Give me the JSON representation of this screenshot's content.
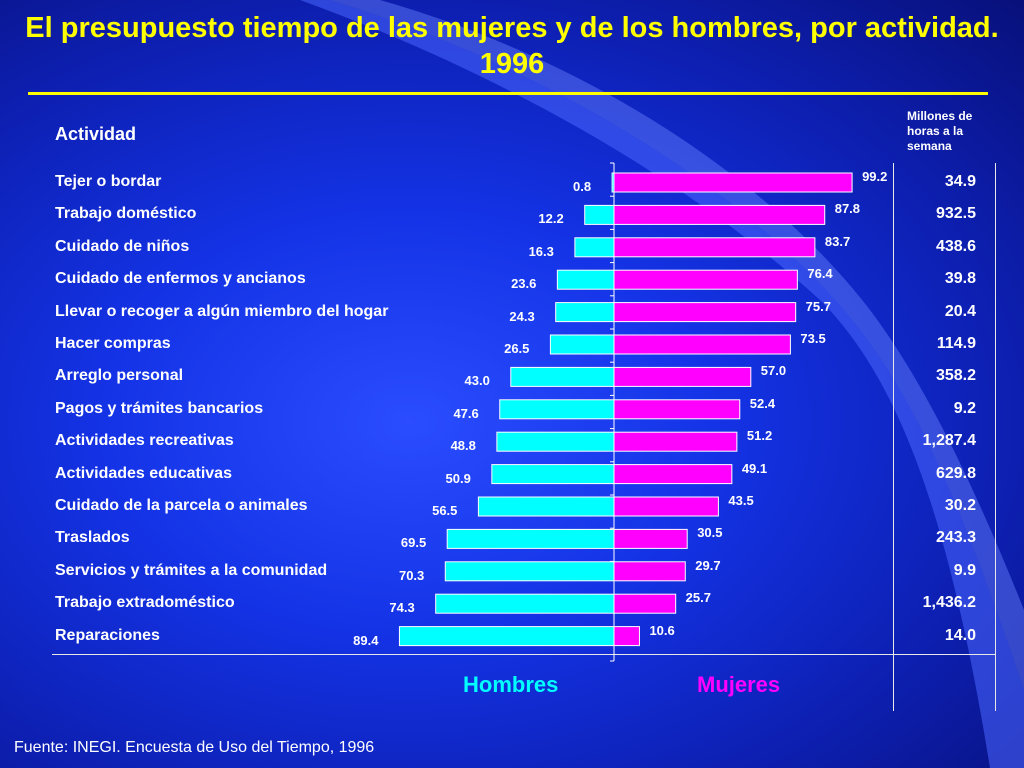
{
  "title": "El presupuesto tiempo de las mujeres y de los hombres, por actividad. 1996",
  "columns": {
    "activity_header": "Actividad",
    "total_header": "Millones de horas a la semana"
  },
  "source": "Fuente: INEGI. Encuesta de Uso del Tiempo, 1996",
  "colors": {
    "men": "#00ffff",
    "women": "#ff00ff",
    "title": "#ffff00",
    "background": "#1433e6"
  },
  "chart_data": {
    "type": "bar",
    "orientation": "horizontal-diverging",
    "title": "El presupuesto tiempo de las mujeres y de los hombres, por actividad. 1996",
    "categories": [
      "Tejer o bordar",
      "Trabajo doméstico",
      "Cuidado de niños",
      "Cuidado de enfermos y ancianos",
      "Llevar o recoger a algún miembro del hogar",
      "Hacer compras",
      "Arreglo personal",
      "Pagos y trámites bancarios",
      "Actividades recreativas",
      "Actividades educativas",
      "Cuidado de la parcela o animales",
      "Traslados",
      "Servicios y trámites a la comunidad",
      "Trabajo extradoméstico",
      "Reparaciones"
    ],
    "series": [
      {
        "name": "Hombres",
        "values": [
          "0.8",
          "12.2",
          "16.3",
          "23.6",
          "24.3",
          "26.5",
          "43.0",
          "47.6",
          "48.8",
          "50.9",
          "56.5",
          "69.5",
          "70.3",
          "74.3",
          "89.4"
        ]
      },
      {
        "name": "Mujeres",
        "values": [
          "99.2",
          "87.8",
          "83.7",
          "76.4",
          "75.7",
          "73.5",
          "57.0",
          "52.4",
          "51.2",
          "49.1",
          "43.5",
          "30.5",
          "29.7",
          "25.7",
          "10.6"
        ]
      }
    ],
    "totals": [
      "34.9",
      "932.5",
      "438.6",
      "39.8",
      "20.4",
      "114.9",
      "358.2",
      "9.2",
      "1,287.4",
      "629.8",
      "30.2",
      "243.3",
      "9.9",
      "1,436.2",
      "14.0"
    ],
    "xlim": [
      0,
      100
    ],
    "legend": "bottom"
  }
}
